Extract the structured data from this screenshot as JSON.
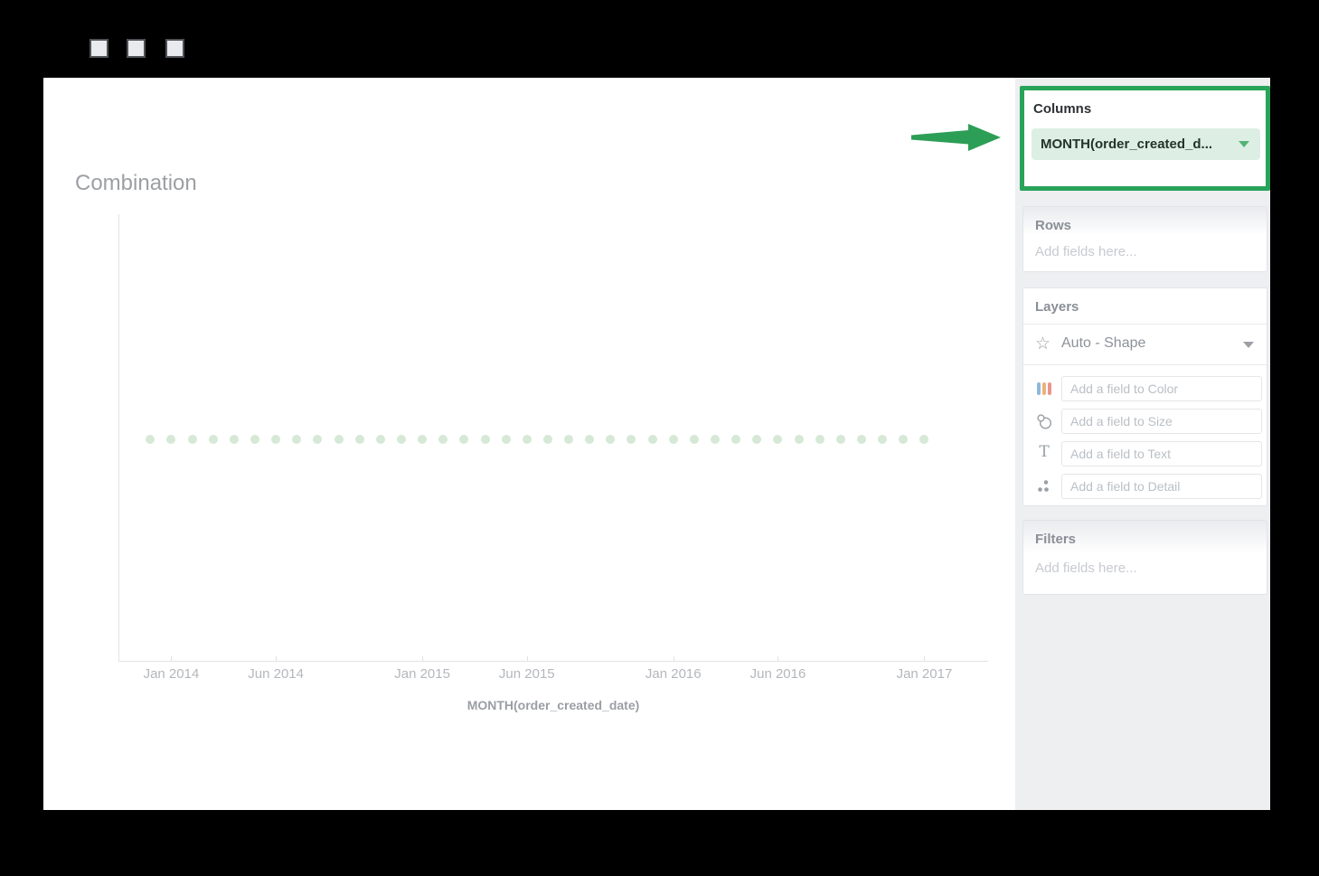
{
  "window": {
    "buttons": [
      "window-button-1",
      "window-button-2",
      "window-button-3"
    ]
  },
  "chart": {
    "title": "Combination",
    "xlabel": "MONTH(order_created_date)"
  },
  "chart_data": {
    "type": "scatter",
    "title": "Combination",
    "xlabel": "MONTH(order_created_date)",
    "ylabel": "",
    "note": "One shape mark per month plotted in a single horizontal row; no field assigned to Rows so there is no y-axis measure",
    "mark_shape": "circle",
    "mark_color": "#d6e8d6",
    "x": [
      "Dec 2013",
      "Jan 2014",
      "Feb 2014",
      "Mar 2014",
      "Apr 2014",
      "May 2014",
      "Jun 2014",
      "Jul 2014",
      "Aug 2014",
      "Sep 2014",
      "Oct 2014",
      "Nov 2014",
      "Dec 2014",
      "Jan 2015",
      "Feb 2015",
      "Mar 2015",
      "Apr 2015",
      "May 2015",
      "Jun 2015",
      "Jul 2015",
      "Aug 2015",
      "Sep 2015",
      "Oct 2015",
      "Nov 2015",
      "Dec 2015",
      "Jan 2016",
      "Feb 2016",
      "Mar 2016",
      "Apr 2016",
      "May 2016",
      "Jun 2016",
      "Jul 2016",
      "Aug 2016",
      "Sep 2016",
      "Oct 2016",
      "Nov 2016",
      "Dec 2016",
      "Jan 2017"
    ],
    "x_ticks": [
      {
        "label": "Jan 2014",
        "month_index": 1
      },
      {
        "label": "Jun 2014",
        "month_index": 6
      },
      {
        "label": "Jan 2015",
        "month_index": 13
      },
      {
        "label": "Jun 2015",
        "month_index": 18
      },
      {
        "label": "Jan 2016",
        "month_index": 25
      },
      {
        "label": "Jun 2016",
        "month_index": 30
      },
      {
        "label": "Jan 2017",
        "month_index": 37
      }
    ],
    "grid": false,
    "legend": false
  },
  "sidebar": {
    "columns": {
      "label": "Columns",
      "pill_label": "MONTH(order_created_d...",
      "highlight_color": "#27a35a",
      "pill_bg": "#ddefe4"
    },
    "rows": {
      "label": "Rows",
      "placeholder": "Add fields here..."
    },
    "layers": {
      "label": "Layers",
      "layer_selector": "Auto - Shape",
      "fields": [
        {
          "icon": "color-bars-icon",
          "placeholder": "Add a field to Color"
        },
        {
          "icon": "size-circles-icon",
          "placeholder": "Add a field to Size"
        },
        {
          "icon": "text-icon",
          "placeholder": "Add a field to Text"
        },
        {
          "icon": "detail-dots-icon",
          "placeholder": "Add a field to Detail"
        }
      ]
    },
    "filters": {
      "label": "Filters",
      "placeholder": "Add fields here..."
    }
  },
  "colors": {
    "frame_bg": "#000000",
    "canvas_bg": "#ffffff",
    "sidebar_bg": "#edeff1",
    "axis_line": "#e1e3e5",
    "tick_label": "#b4b7bc",
    "accent_green": "#27a35a",
    "mark_green": "#d6e8d6"
  }
}
